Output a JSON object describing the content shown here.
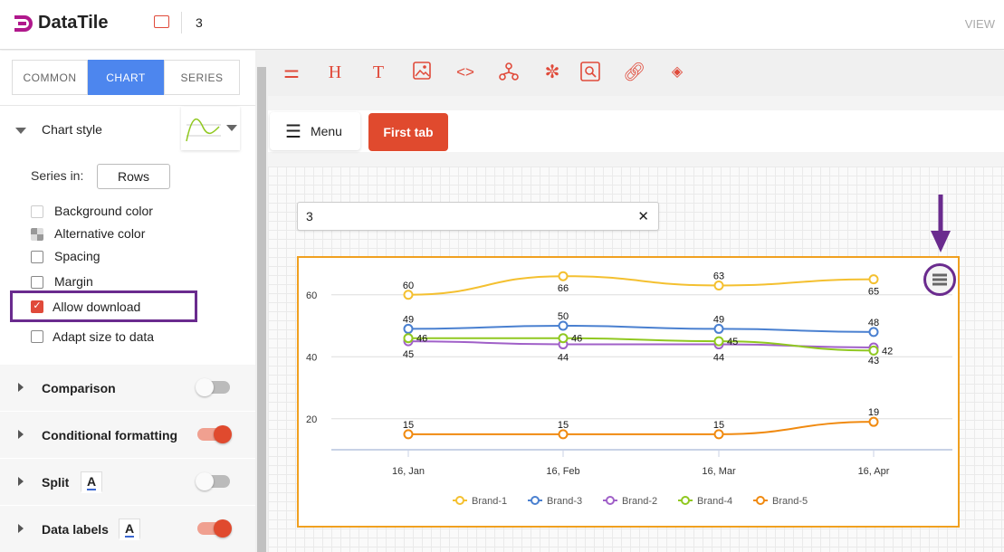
{
  "app": {
    "name": "DataTile",
    "doc_name": "3",
    "view_label": "VIEW",
    "brand_color": "#b0188c"
  },
  "sidebar": {
    "tabs": [
      {
        "label": "COMMON"
      },
      {
        "label": "CHART",
        "active": true
      },
      {
        "label": "SERIES"
      }
    ],
    "chart_style": {
      "title": "Chart style",
      "series_in_label": "Series in:",
      "series_in_value": "Rows"
    },
    "options": [
      {
        "label": "Background color",
        "checked": false
      },
      {
        "label": "Alternative color",
        "checked": false
      },
      {
        "label": "Spacing",
        "checked": false
      },
      {
        "label": "Margin",
        "checked": false
      },
      {
        "label": "Allow download",
        "checked": true,
        "highlighted": true
      },
      {
        "label": "Adapt size to data",
        "checked": false
      }
    ],
    "sections": [
      {
        "label": "Comparison",
        "toggle": false
      },
      {
        "label": "Conditional formatting",
        "toggle": true
      },
      {
        "label": "Split",
        "toggle": false,
        "font_icon": "A"
      },
      {
        "label": "Data labels",
        "toggle": true,
        "font_icon": "A"
      }
    ]
  },
  "toolbar": {
    "icons": [
      "sliders-icon",
      "heading-icon",
      "text-icon",
      "image-icon",
      "code-icon",
      "hierarchy-icon",
      "network-icon",
      "search-box-icon",
      "link-icon",
      "layers-icon"
    ]
  },
  "tabs": {
    "menu_label": "Menu",
    "first_tab": "First tab"
  },
  "filter": {
    "value": "3"
  },
  "chart_data": {
    "type": "line",
    "categories": [
      "16, Jan",
      "16, Feb",
      "16, Mar",
      "16, Apr"
    ],
    "ylim": [
      10,
      68
    ],
    "yticks": [
      20,
      40,
      60
    ],
    "grid": true,
    "legend_position": "bottom",
    "series": [
      {
        "name": "Brand-1",
        "color": "#f4c030",
        "values": [
          60,
          66,
          63,
          65
        ]
      },
      {
        "name": "Brand-3",
        "color": "#4a80d0",
        "values": [
          49,
          50,
          49,
          48
        ]
      },
      {
        "name": "Brand-2",
        "color": "#a060c8",
        "values": [
          45,
          44,
          44,
          43
        ]
      },
      {
        "name": "Brand-4",
        "color": "#90c820",
        "values": [
          46,
          46,
          45,
          42
        ]
      },
      {
        "name": "Brand-5",
        "color": "#f08a10",
        "values": [
          15,
          15,
          15,
          19
        ]
      }
    ]
  }
}
